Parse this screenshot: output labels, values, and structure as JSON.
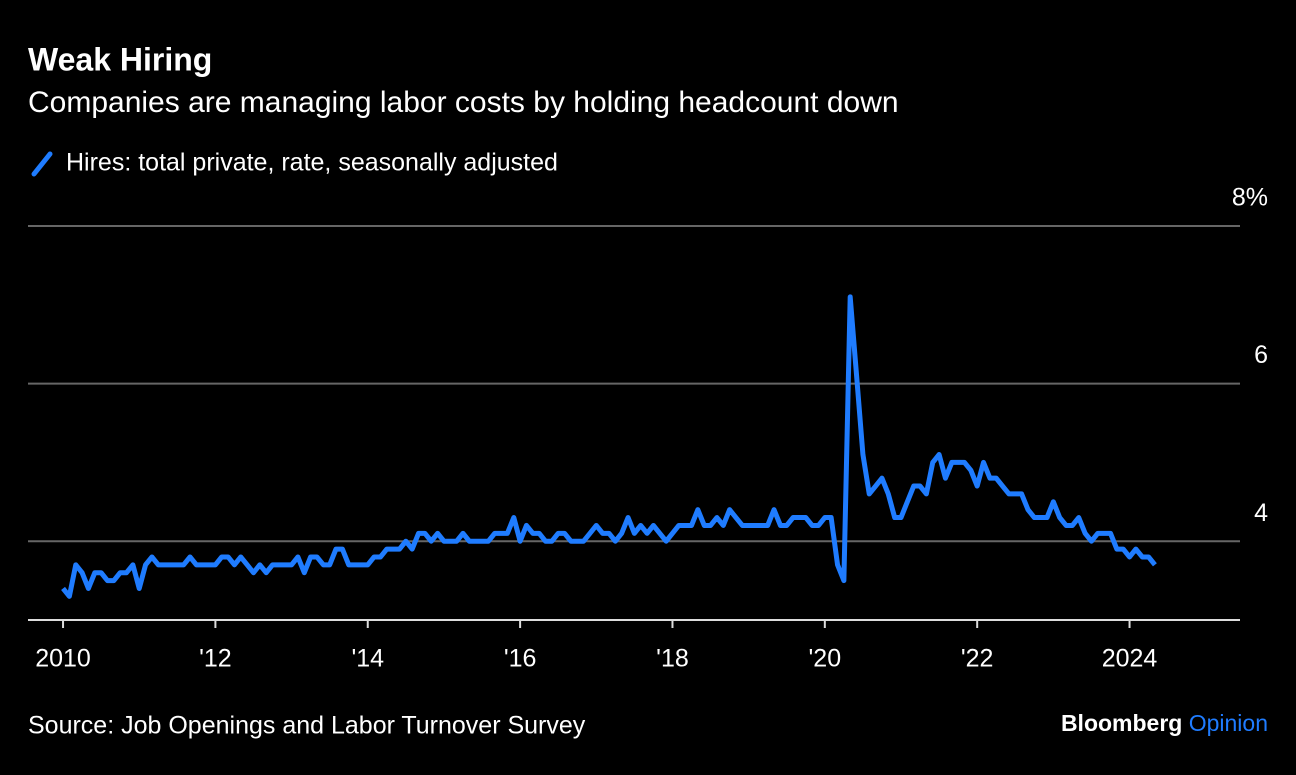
{
  "chart_data": {
    "type": "line",
    "title": "Weak Hiring",
    "subtitle": "Companies are managing labor costs by holding headcount down",
    "source": "Source: Job Openings and Labor Turnover Survey",
    "branding": [
      "Bloomberg",
      "Opinion"
    ],
    "x": [
      2010,
      2010.083,
      2010.167,
      2010.25,
      2010.333,
      2010.417,
      2010.5,
      2010.583,
      2010.667,
      2010.75,
      2010.833,
      2010.917,
      2011,
      2011.083,
      2011.167,
      2011.25,
      2011.333,
      2011.417,
      2011.5,
      2011.583,
      2011.667,
      2011.75,
      2011.833,
      2011.917,
      2012,
      2012.083,
      2012.167,
      2012.25,
      2012.333,
      2012.417,
      2012.5,
      2012.583,
      2012.667,
      2012.75,
      2012.833,
      2012.917,
      2013,
      2013.083,
      2013.167,
      2013.25,
      2013.333,
      2013.417,
      2013.5,
      2013.583,
      2013.667,
      2013.75,
      2013.833,
      2013.917,
      2014,
      2014.083,
      2014.167,
      2014.25,
      2014.333,
      2014.417,
      2014.5,
      2014.583,
      2014.667,
      2014.75,
      2014.833,
      2014.917,
      2015,
      2015.083,
      2015.167,
      2015.25,
      2015.333,
      2015.417,
      2015.5,
      2015.583,
      2015.667,
      2015.75,
      2015.833,
      2015.917,
      2016,
      2016.083,
      2016.167,
      2016.25,
      2016.333,
      2016.417,
      2016.5,
      2016.583,
      2016.667,
      2016.75,
      2016.833,
      2016.917,
      2017,
      2017.083,
      2017.167,
      2017.25,
      2017.333,
      2017.417,
      2017.5,
      2017.583,
      2017.667,
      2017.75,
      2017.833,
      2017.917,
      2018,
      2018.083,
      2018.167,
      2018.25,
      2018.333,
      2018.417,
      2018.5,
      2018.583,
      2018.667,
      2018.75,
      2018.833,
      2018.917,
      2019,
      2019.083,
      2019.167,
      2019.25,
      2019.333,
      2019.417,
      2019.5,
      2019.583,
      2019.667,
      2019.75,
      2019.833,
      2019.917,
      2020,
      2020.083,
      2020.167,
      2020.25,
      2020.333,
      2020.417,
      2020.5,
      2020.583,
      2020.667,
      2020.75,
      2020.833,
      2020.917,
      2021,
      2021.083,
      2021.167,
      2021.25,
      2021.333,
      2021.417,
      2021.5,
      2021.583,
      2021.667,
      2021.75,
      2021.833,
      2021.917,
      2022,
      2022.083,
      2022.167,
      2022.25,
      2022.333,
      2022.417,
      2022.5,
      2022.583,
      2022.667,
      2022.75,
      2022.833,
      2022.917,
      2023,
      2023.083,
      2023.167,
      2023.25,
      2023.333,
      2023.417,
      2023.5,
      2023.583,
      2023.667,
      2023.75,
      2023.833,
      2023.917,
      2024,
      2024.083,
      2024.167,
      2024.25,
      2024.333
    ],
    "series": [
      {
        "name": "Hires: total private, rate, seasonally adjusted",
        "color": "#1f7cff",
        "values": [
          3.4,
          3.3,
          3.7,
          3.6,
          3.4,
          3.6,
          3.6,
          3.5,
          3.5,
          3.6,
          3.6,
          3.7,
          3.4,
          3.7,
          3.8,
          3.7,
          3.7,
          3.7,
          3.7,
          3.7,
          3.8,
          3.7,
          3.7,
          3.7,
          3.7,
          3.8,
          3.8,
          3.7,
          3.8,
          3.7,
          3.6,
          3.7,
          3.6,
          3.7,
          3.7,
          3.7,
          3.7,
          3.8,
          3.6,
          3.8,
          3.8,
          3.7,
          3.7,
          3.9,
          3.9,
          3.7,
          3.7,
          3.7,
          3.7,
          3.8,
          3.8,
          3.9,
          3.9,
          3.9,
          4.0,
          3.9,
          4.1,
          4.1,
          4.0,
          4.1,
          4.0,
          4.0,
          4.0,
          4.1,
          4.0,
          4.0,
          4.0,
          4.0,
          4.1,
          4.1,
          4.1,
          4.3,
          4.0,
          4.2,
          4.1,
          4.1,
          4.0,
          4.0,
          4.1,
          4.1,
          4.0,
          4.0,
          4.0,
          4.1,
          4.2,
          4.1,
          4.1,
          4.0,
          4.1,
          4.3,
          4.1,
          4.2,
          4.1,
          4.2,
          4.1,
          4.0,
          4.1,
          4.2,
          4.2,
          4.2,
          4.4,
          4.2,
          4.2,
          4.3,
          4.2,
          4.4,
          4.3,
          4.2,
          4.2,
          4.2,
          4.2,
          4.2,
          4.4,
          4.2,
          4.2,
          4.3,
          4.3,
          4.3,
          4.2,
          4.2,
          4.3,
          4.3,
          3.7,
          3.5,
          7.1,
          6.1,
          5.1,
          4.6,
          4.7,
          4.8,
          4.6,
          4.3,
          4.3,
          4.5,
          4.7,
          4.7,
          4.6,
          5.0,
          5.1,
          4.8,
          5.0,
          5.0,
          5.0,
          4.9,
          4.7,
          5.0,
          4.8,
          4.8,
          4.7,
          4.6,
          4.6,
          4.6,
          4.4,
          4.3,
          4.3,
          4.3,
          4.5,
          4.3,
          4.2,
          4.2,
          4.3,
          4.1,
          4.0,
          4.1,
          4.1,
          4.1,
          3.9,
          3.9,
          3.8,
          3.9,
          3.8,
          3.8,
          3.7
        ]
      }
    ],
    "xlim": [
      2009.54,
      2025.45
    ],
    "xticks": [
      2010,
      {
        "value": 2012,
        "label": "'12"
      },
      {
        "value": 2014,
        "label": "'14"
      },
      {
        "value": 2016,
        "label": "'16"
      },
      {
        "value": 2018,
        "label": "'18"
      },
      {
        "value": 2020,
        "label": "'20"
      },
      {
        "value": 2022,
        "label": "'22"
      },
      2024
    ],
    "ylim": [
      3,
      8
    ],
    "yticks": [
      4,
      6,
      {
        "value": 8,
        "label": "8%"
      }
    ],
    "grid": true
  }
}
